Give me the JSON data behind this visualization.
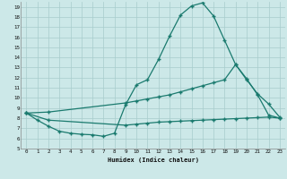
{
  "xlabel": "Humidex (Indice chaleur)",
  "bg_color": "#cce8e8",
  "grid_color": "#a8cccc",
  "line_color": "#1a7a6e",
  "ylim": [
    5,
    19.5
  ],
  "xlim": [
    -0.5,
    23.5
  ],
  "yticks": [
    5,
    6,
    7,
    8,
    9,
    10,
    11,
    12,
    13,
    14,
    15,
    16,
    17,
    18,
    19
  ],
  "xticks": [
    0,
    1,
    2,
    3,
    4,
    5,
    6,
    7,
    8,
    9,
    10,
    11,
    12,
    13,
    14,
    15,
    16,
    17,
    18,
    19,
    20,
    21,
    22,
    23
  ],
  "line1_x": [
    0,
    1,
    2,
    3,
    4,
    5,
    6,
    7,
    8,
    9,
    10,
    11,
    12,
    13,
    14,
    15,
    16,
    17,
    18,
    19,
    20,
    21,
    22,
    23
  ],
  "line1_y": [
    8.5,
    7.8,
    7.2,
    6.7,
    6.5,
    6.4,
    6.35,
    6.2,
    6.5,
    9.3,
    11.3,
    11.8,
    13.8,
    16.1,
    18.2,
    19.1,
    19.4,
    18.1,
    15.7,
    13.3,
    11.8,
    10.4,
    9.4,
    8.1
  ],
  "line2_x": [
    0,
    2,
    9,
    10,
    11,
    12,
    13,
    14,
    15,
    16,
    17,
    18,
    19,
    20,
    21,
    22,
    23
  ],
  "line2_y": [
    8.5,
    8.6,
    9.5,
    9.7,
    9.9,
    10.1,
    10.3,
    10.6,
    10.9,
    11.2,
    11.5,
    11.8,
    13.3,
    11.9,
    10.3,
    8.3,
    8.0
  ],
  "line3_x": [
    0,
    2,
    9,
    10,
    11,
    12,
    13,
    14,
    15,
    16,
    17,
    18,
    19,
    20,
    21,
    22,
    23
  ],
  "line3_y": [
    8.5,
    7.8,
    7.3,
    7.4,
    7.5,
    7.6,
    7.65,
    7.7,
    7.75,
    7.8,
    7.85,
    7.9,
    7.95,
    8.0,
    8.05,
    8.1,
    8.0
  ]
}
